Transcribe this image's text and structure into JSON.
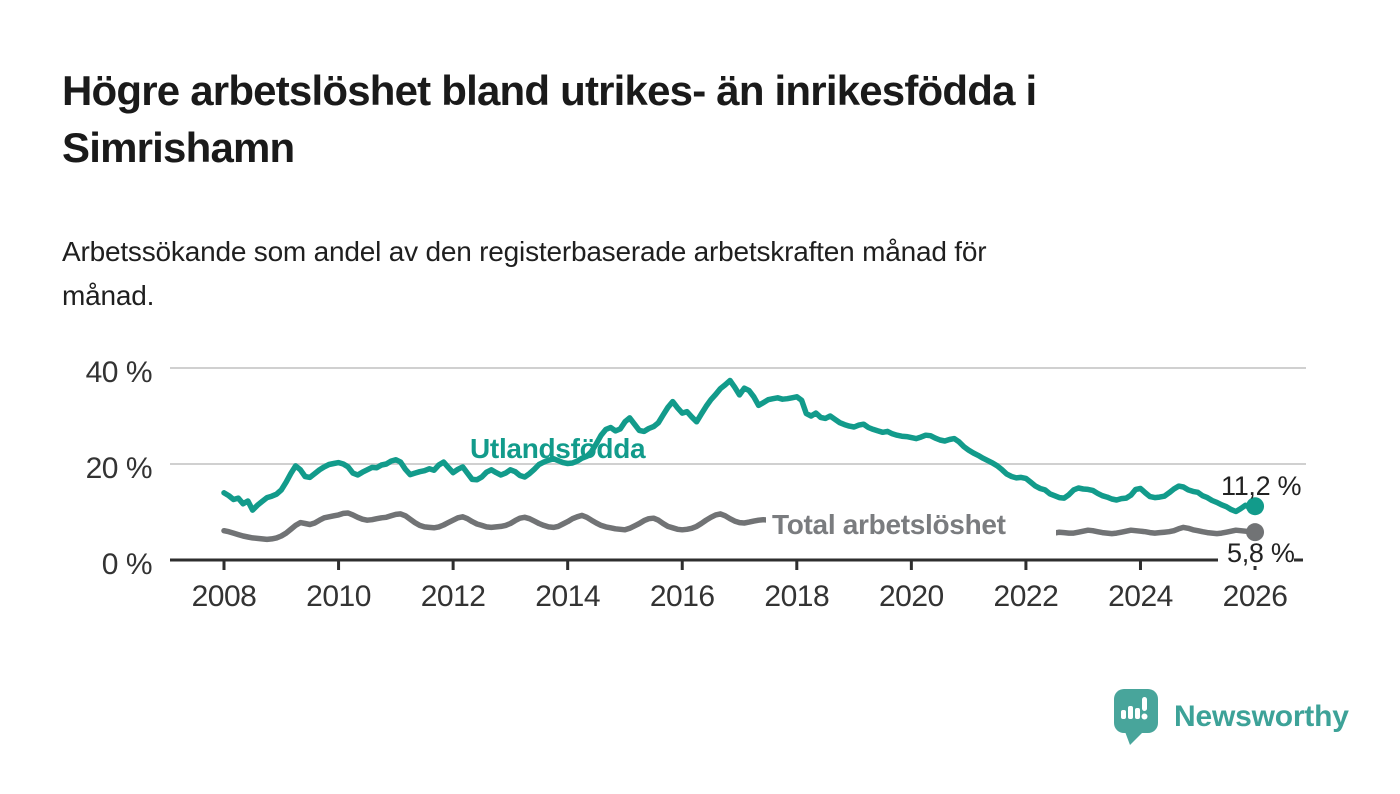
{
  "chart_data": {
    "type": "line",
    "title_lines": [
      "Högre arbetslöshet bland utrikes- än inrikesfödda i",
      "Simrishamn"
    ],
    "subtitle_lines": [
      "Arbetssökande som andel av den registerbaserade arbetskraften månad för",
      "månad."
    ],
    "x_start_year": 2008,
    "points_per_year": 12,
    "x_axis_ticks": [
      2008,
      2010,
      2012,
      2014,
      2016,
      2018,
      2020,
      2022,
      2024,
      2026
    ],
    "y_axis_ticks": [
      {
        "value": 0,
        "label": "0 %"
      },
      {
        "value": 20,
        "label": "20 %"
      },
      {
        "value": 40,
        "label": "40 %"
      }
    ],
    "ylim": [
      0,
      42
    ],
    "xlim": [
      2007.1,
      2026.9
    ],
    "y_unit": "%",
    "grid": "horizontal",
    "legend": "inline-labels",
    "series": [
      {
        "name": "Utlandsfödda",
        "color": "#129b8b",
        "label_color": "#129b8b",
        "end_value": 11.2,
        "end_label": "11,2 %",
        "values": [
          14.0,
          13.4,
          12.6,
          12.9,
          11.7,
          12.3,
          10.4,
          11.4,
          12.2,
          13.0,
          13.3,
          13.7,
          14.6,
          16.2,
          18.0,
          19.6,
          18.8,
          17.4,
          17.2,
          18.0,
          18.8,
          19.4,
          19.9,
          20.1,
          20.3,
          20.0,
          19.4,
          18.1,
          17.7,
          18.3,
          18.8,
          19.3,
          19.2,
          19.8,
          20.0,
          20.6,
          20.9,
          20.4,
          18.9,
          17.8,
          18.1,
          18.4,
          18.6,
          19.0,
          18.7,
          19.8,
          20.4,
          19.3,
          18.2,
          18.9,
          19.4,
          18.1,
          16.8,
          16.7,
          17.3,
          18.3,
          18.8,
          18.2,
          17.7,
          18.1,
          18.8,
          18.4,
          17.6,
          17.3,
          18.0,
          18.9,
          19.9,
          20.4,
          20.8,
          21.1,
          20.7,
          20.3,
          20.1,
          20.2,
          20.6,
          21.2,
          21.6,
          22.6,
          24.2,
          26.0,
          27.2,
          27.6,
          26.9,
          27.3,
          28.8,
          29.6,
          28.3,
          27.0,
          26.8,
          27.4,
          27.8,
          28.6,
          30.2,
          31.8,
          33.0,
          31.7,
          30.6,
          30.9,
          29.8,
          28.8,
          30.4,
          32.0,
          33.4,
          34.5,
          35.7,
          36.5,
          37.4,
          36.0,
          34.4,
          35.8,
          35.3,
          34.0,
          32.2,
          32.8,
          33.4,
          33.6,
          33.8,
          33.5,
          33.6,
          33.8,
          34.0,
          33.3,
          30.5,
          30.0,
          30.6,
          29.7,
          29.5,
          30.0,
          29.3,
          28.6,
          28.2,
          27.9,
          27.7,
          28.1,
          28.3,
          27.6,
          27.2,
          26.9,
          26.6,
          26.8,
          26.3,
          26.0,
          25.8,
          25.7,
          25.5,
          25.3,
          25.6,
          26.0,
          25.9,
          25.4,
          25.0,
          24.8,
          25.1,
          25.3,
          24.6,
          23.6,
          22.9,
          22.3,
          21.8,
          21.2,
          20.7,
          20.2,
          19.6,
          18.8,
          17.9,
          17.4,
          17.1,
          17.2,
          17.0,
          16.2,
          15.4,
          14.9,
          14.6,
          13.8,
          13.4,
          13.0,
          12.9,
          13.6,
          14.6,
          15.0,
          14.8,
          14.7,
          14.5,
          13.9,
          13.4,
          13.1,
          12.7,
          12.5,
          12.8,
          12.9,
          13.5,
          14.7,
          14.9,
          14.0,
          13.2,
          13.0,
          13.1,
          13.3,
          14.0,
          14.8,
          15.4,
          15.2,
          14.6,
          14.3,
          14.1,
          13.4,
          13.0,
          12.4,
          12.0,
          11.5,
          11.1,
          10.5,
          10.1,
          10.7,
          11.4,
          10.9,
          11.2
        ]
      },
      {
        "name": "Total arbetslöshet",
        "color": "#717375",
        "label_color": "#7a7c7f",
        "end_value": 5.8,
        "end_label": "5,8 %",
        "values": [
          6.1,
          5.9,
          5.6,
          5.3,
          5.0,
          4.8,
          4.6,
          4.5,
          4.4,
          4.3,
          4.4,
          4.6,
          5.0,
          5.6,
          6.4,
          7.2,
          7.8,
          7.6,
          7.4,
          7.7,
          8.3,
          8.8,
          9.0,
          9.2,
          9.4,
          9.7,
          9.8,
          9.4,
          8.9,
          8.5,
          8.3,
          8.4,
          8.6,
          8.8,
          8.9,
          9.2,
          9.5,
          9.6,
          9.2,
          8.5,
          7.8,
          7.2,
          6.9,
          6.8,
          6.7,
          6.9,
          7.3,
          7.8,
          8.3,
          8.8,
          9.0,
          8.6,
          8.0,
          7.5,
          7.2,
          6.9,
          6.8,
          6.9,
          7.0,
          7.2,
          7.6,
          8.2,
          8.7,
          8.9,
          8.6,
          8.1,
          7.6,
          7.2,
          6.9,
          6.8,
          7.0,
          7.5,
          8.0,
          8.6,
          9.0,
          9.3,
          8.9,
          8.3,
          7.7,
          7.2,
          6.9,
          6.7,
          6.5,
          6.4,
          6.3,
          6.6,
          7.1,
          7.6,
          8.2,
          8.6,
          8.7,
          8.3,
          7.6,
          7.0,
          6.7,
          6.4,
          6.3,
          6.4,
          6.6,
          7.0,
          7.6,
          8.3,
          8.9,
          9.4,
          9.6,
          9.2,
          8.6,
          8.1,
          7.8,
          7.7,
          7.9,
          8.1,
          8.3,
          8.4,
          8.3,
          8.2,
          8.1,
          8.0,
          7.9,
          7.9,
          7.8,
          7.8,
          7.7,
          7.7,
          7.6,
          7.5,
          7.4,
          7.3,
          7.2,
          7.1,
          7.0,
          7.0,
          6.9,
          6.9,
          6.8,
          6.8,
          6.7,
          6.7,
          6.6,
          6.6,
          6.6,
          6.7,
          6.7,
          6.8,
          6.9,
          7.1,
          7.5,
          8.0,
          8.3,
          8.4,
          8.3,
          8.1,
          7.9,
          7.7,
          7.5,
          7.3,
          7.1,
          6.9,
          6.7,
          6.5,
          6.3,
          6.1,
          5.9,
          5.7,
          5.5,
          5.4,
          5.3,
          5.2,
          5.2,
          5.1,
          5.0,
          4.9,
          4.9,
          5.2,
          5.6,
          5.8,
          5.7,
          5.6,
          5.6,
          5.8,
          6.0,
          6.2,
          6.1,
          5.9,
          5.7,
          5.6,
          5.5,
          5.6,
          5.8,
          6.0,
          6.2,
          6.1,
          6.0,
          5.9,
          5.7,
          5.6,
          5.7,
          5.8,
          5.9,
          6.1,
          6.5,
          6.8,
          6.6,
          6.3,
          6.1,
          5.9,
          5.7,
          5.6,
          5.5,
          5.6,
          5.8,
          6.0,
          6.2,
          6.1,
          6.0,
          5.9,
          5.8
        ]
      }
    ]
  },
  "footer": {
    "brand": "Newsworthy",
    "brand_color": "#3da298",
    "icon": "newsworthy-logo-icon",
    "icon_color": "#48a59b"
  }
}
